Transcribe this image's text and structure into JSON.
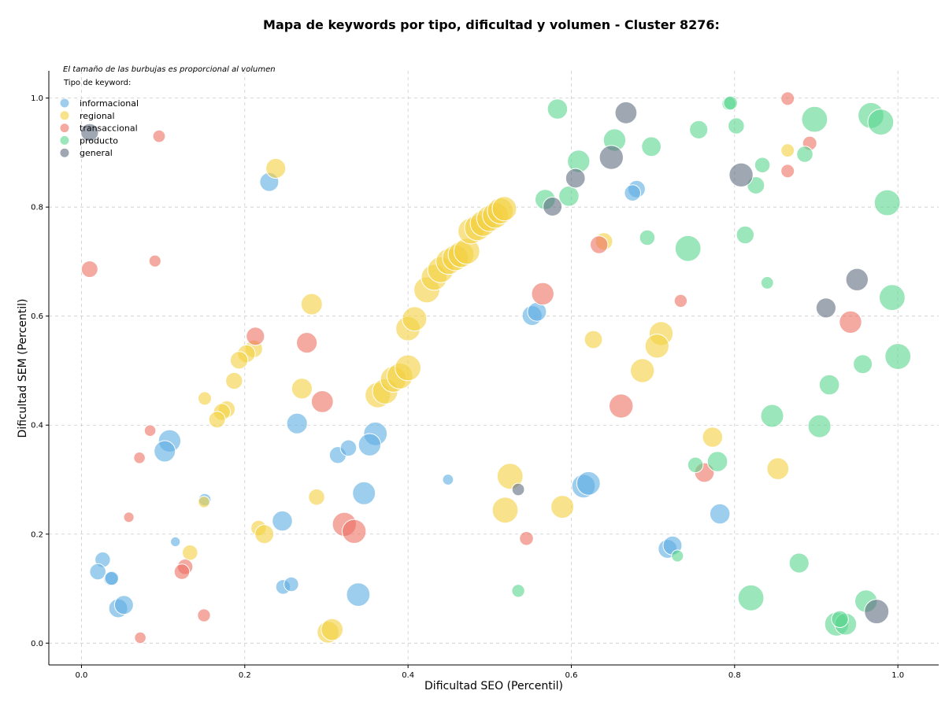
{
  "chart_data": {
    "type": "scatter",
    "title": "Mapa de keywords por tipo, dificultad y volumen - Cluster 8276:",
    "xlabel": "Dificultad SEO (Percentil)",
    "ylabel": "Dificultad SEM (Percentil)",
    "annotation": "El tamaño de las burbujas es proporcional al volumen",
    "legend_title": "Tipo de keyword:",
    "legend_position": "top-left",
    "xlim": [
      -0.04,
      1.05
    ],
    "ylim": [
      -0.04,
      1.05
    ],
    "x_ticks": [
      "0.0",
      "0.2",
      "0.4",
      "0.6",
      "0.8",
      "1.0"
    ],
    "y_ticks": [
      "0.0",
      "0.2",
      "0.4",
      "0.6",
      "0.8",
      "1.0"
    ],
    "grid": true,
    "series": [
      {
        "name": "informacional",
        "color": "#5DADE2",
        "points": [
          [
            0.23,
            0.846,
            300
          ],
          [
            0.68,
            0.833,
            250
          ],
          [
            0.675,
            0.826,
            220
          ],
          [
            0.552,
            0.601,
            330
          ],
          [
            0.558,
            0.608,
            300
          ],
          [
            0.108,
            0.371,
            420
          ],
          [
            0.102,
            0.352,
            380
          ],
          [
            0.264,
            0.403,
            360
          ],
          [
            0.36,
            0.384,
            460
          ],
          [
            0.353,
            0.364,
            420
          ],
          [
            0.314,
            0.345,
            240
          ],
          [
            0.327,
            0.358,
            220
          ],
          [
            0.151,
            0.263,
            130
          ],
          [
            0.346,
            0.275,
            440
          ],
          [
            0.246,
            0.224,
            340
          ],
          [
            0.115,
            0.186,
            80
          ],
          [
            0.026,
            0.153,
            200
          ],
          [
            0.02,
            0.131,
            220
          ],
          [
            0.036,
            0.118,
            170
          ],
          [
            0.037,
            0.119,
            160
          ],
          [
            0.045,
            0.064,
            300
          ],
          [
            0.052,
            0.07,
            300
          ],
          [
            0.247,
            0.103,
            180
          ],
          [
            0.257,
            0.108,
            180
          ],
          [
            0.339,
            0.089,
            460
          ],
          [
            0.449,
            0.3,
            100
          ],
          [
            0.615,
            0.288,
            460
          ],
          [
            0.621,
            0.293,
            460
          ],
          [
            0.782,
            0.237,
            340
          ],
          [
            0.718,
            0.173,
            300
          ],
          [
            0.724,
            0.179,
            300
          ]
        ]
      },
      {
        "name": "regional",
        "color": "#F4D03F",
        "points": [
          [
            0.238,
            0.871,
            330
          ],
          [
            0.282,
            0.622,
            380
          ],
          [
            0.211,
            0.54,
            260
          ],
          [
            0.202,
            0.531,
            260
          ],
          [
            0.193,
            0.519,
            260
          ],
          [
            0.187,
            0.481,
            240
          ],
          [
            0.151,
            0.449,
            150
          ],
          [
            0.27,
            0.467,
            360
          ],
          [
            0.178,
            0.429,
            240
          ],
          [
            0.172,
            0.424,
            240
          ],
          [
            0.166,
            0.41,
            230
          ],
          [
            0.4,
            0.577,
            500
          ],
          [
            0.408,
            0.595,
            500
          ],
          [
            0.363,
            0.455,
            540
          ],
          [
            0.372,
            0.462,
            540
          ],
          [
            0.382,
            0.484,
            560
          ],
          [
            0.39,
            0.49,
            560
          ],
          [
            0.4,
            0.505,
            560
          ],
          [
            0.423,
            0.648,
            560
          ],
          [
            0.432,
            0.671,
            560
          ],
          [
            0.44,
            0.685,
            560
          ],
          [
            0.45,
            0.7,
            560
          ],
          [
            0.458,
            0.707,
            560
          ],
          [
            0.465,
            0.713,
            560
          ],
          [
            0.472,
            0.719,
            560
          ],
          [
            0.477,
            0.756,
            560
          ],
          [
            0.485,
            0.762,
            560
          ],
          [
            0.492,
            0.77,
            560
          ],
          [
            0.5,
            0.779,
            560
          ],
          [
            0.507,
            0.785,
            560
          ],
          [
            0.513,
            0.793,
            560
          ],
          [
            0.518,
            0.797,
            500
          ],
          [
            0.64,
            0.737,
            250
          ],
          [
            0.627,
            0.557,
            270
          ],
          [
            0.71,
            0.568,
            480
          ],
          [
            0.705,
            0.545,
            480
          ],
          [
            0.687,
            0.5,
            480
          ],
          [
            0.525,
            0.306,
            560
          ],
          [
            0.519,
            0.244,
            560
          ],
          [
            0.589,
            0.25,
            440
          ],
          [
            0.773,
            0.378,
            340
          ],
          [
            0.853,
            0.32,
            400
          ],
          [
            0.865,
            0.904,
            150
          ],
          [
            0.15,
            0.259,
            110
          ],
          [
            0.133,
            0.166,
            200
          ],
          [
            0.217,
            0.211,
            200
          ],
          [
            0.224,
            0.2,
            300
          ],
          [
            0.288,
            0.268,
            220
          ],
          [
            0.302,
            0.02,
            400
          ],
          [
            0.307,
            0.025,
            400
          ]
        ]
      },
      {
        "name": "transaccional",
        "color": "#EC7063",
        "points": [
          [
            0.095,
            0.93,
            130
          ],
          [
            0.01,
            0.686,
            230
          ],
          [
            0.09,
            0.701,
            120
          ],
          [
            0.213,
            0.563,
            280
          ],
          [
            0.276,
            0.551,
            360
          ],
          [
            0.295,
            0.443,
            400
          ],
          [
            0.084,
            0.39,
            110
          ],
          [
            0.071,
            0.34,
            110
          ],
          [
            0.058,
            0.231,
            90
          ],
          [
            0.127,
            0.14,
            200
          ],
          [
            0.123,
            0.131,
            200
          ],
          [
            0.15,
            0.051,
            140
          ],
          [
            0.322,
            0.218,
            480
          ],
          [
            0.334,
            0.205,
            480
          ],
          [
            0.565,
            0.641,
            420
          ],
          [
            0.545,
            0.192,
            160
          ],
          [
            0.634,
            0.731,
            260
          ],
          [
            0.661,
            0.435,
            480
          ],
          [
            0.734,
            0.628,
            140
          ],
          [
            0.763,
            0.313,
            320
          ],
          [
            0.865,
            0.999,
            150
          ],
          [
            0.865,
            0.866,
            150
          ],
          [
            0.892,
            0.917,
            170
          ],
          [
            0.942,
            0.589,
            420
          ],
          [
            0.072,
            0.01,
            110
          ]
        ]
      },
      {
        "name": "producto",
        "color": "#58D68D",
        "points": [
          [
            0.583,
            0.98,
            340
          ],
          [
            0.609,
            0.884,
            420
          ],
          [
            0.568,
            0.814,
            340
          ],
          [
            0.597,
            0.82,
            340
          ],
          [
            0.653,
            0.923,
            420
          ],
          [
            0.698,
            0.911,
            320
          ],
          [
            0.693,
            0.744,
            200
          ],
          [
            0.743,
            0.724,
            560
          ],
          [
            0.756,
            0.942,
            280
          ],
          [
            0.793,
            0.99,
            160
          ],
          [
            0.795,
            0.991,
            160
          ],
          [
            0.802,
            0.949,
            220
          ],
          [
            0.813,
            0.749,
            260
          ],
          [
            0.826,
            0.84,
            250
          ],
          [
            0.834,
            0.877,
            200
          ],
          [
            0.84,
            0.661,
            130
          ],
          [
            0.886,
            0.897,
            220
          ],
          [
            0.898,
            0.961,
            560
          ],
          [
            0.967,
            0.968,
            560
          ],
          [
            0.979,
            0.956,
            560
          ],
          [
            0.987,
            0.808,
            560
          ],
          [
            0.993,
            0.634,
            560
          ],
          [
            1.0,
            0.526,
            560
          ],
          [
            0.957,
            0.512,
            300
          ],
          [
            0.916,
            0.474,
            340
          ],
          [
            0.904,
            0.398,
            440
          ],
          [
            0.846,
            0.417,
            440
          ],
          [
            0.779,
            0.333,
            340
          ],
          [
            0.752,
            0.327,
            200
          ],
          [
            0.73,
            0.16,
            120
          ],
          [
            0.535,
            0.096,
            140
          ],
          [
            0.879,
            0.147,
            330
          ],
          [
            0.82,
            0.083,
            560
          ],
          [
            0.925,
            0.035,
            480
          ],
          [
            0.936,
            0.035,
            400
          ],
          [
            0.929,
            0.044,
            240
          ],
          [
            0.961,
            0.077,
            420
          ]
        ]
      },
      {
        "name": "general",
        "color": "#5D6D7E",
        "points": [
          [
            0.01,
            0.937,
            260
          ],
          [
            0.667,
            0.973,
            400
          ],
          [
            0.649,
            0.891,
            480
          ],
          [
            0.605,
            0.853,
            320
          ],
          [
            0.577,
            0.801,
            300
          ],
          [
            0.808,
            0.859,
            480
          ],
          [
            0.95,
            0.667,
            420
          ],
          [
            0.912,
            0.615,
            330
          ],
          [
            0.535,
            0.282,
            130
          ],
          [
            0.974,
            0.058,
            500
          ]
        ]
      }
    ]
  }
}
